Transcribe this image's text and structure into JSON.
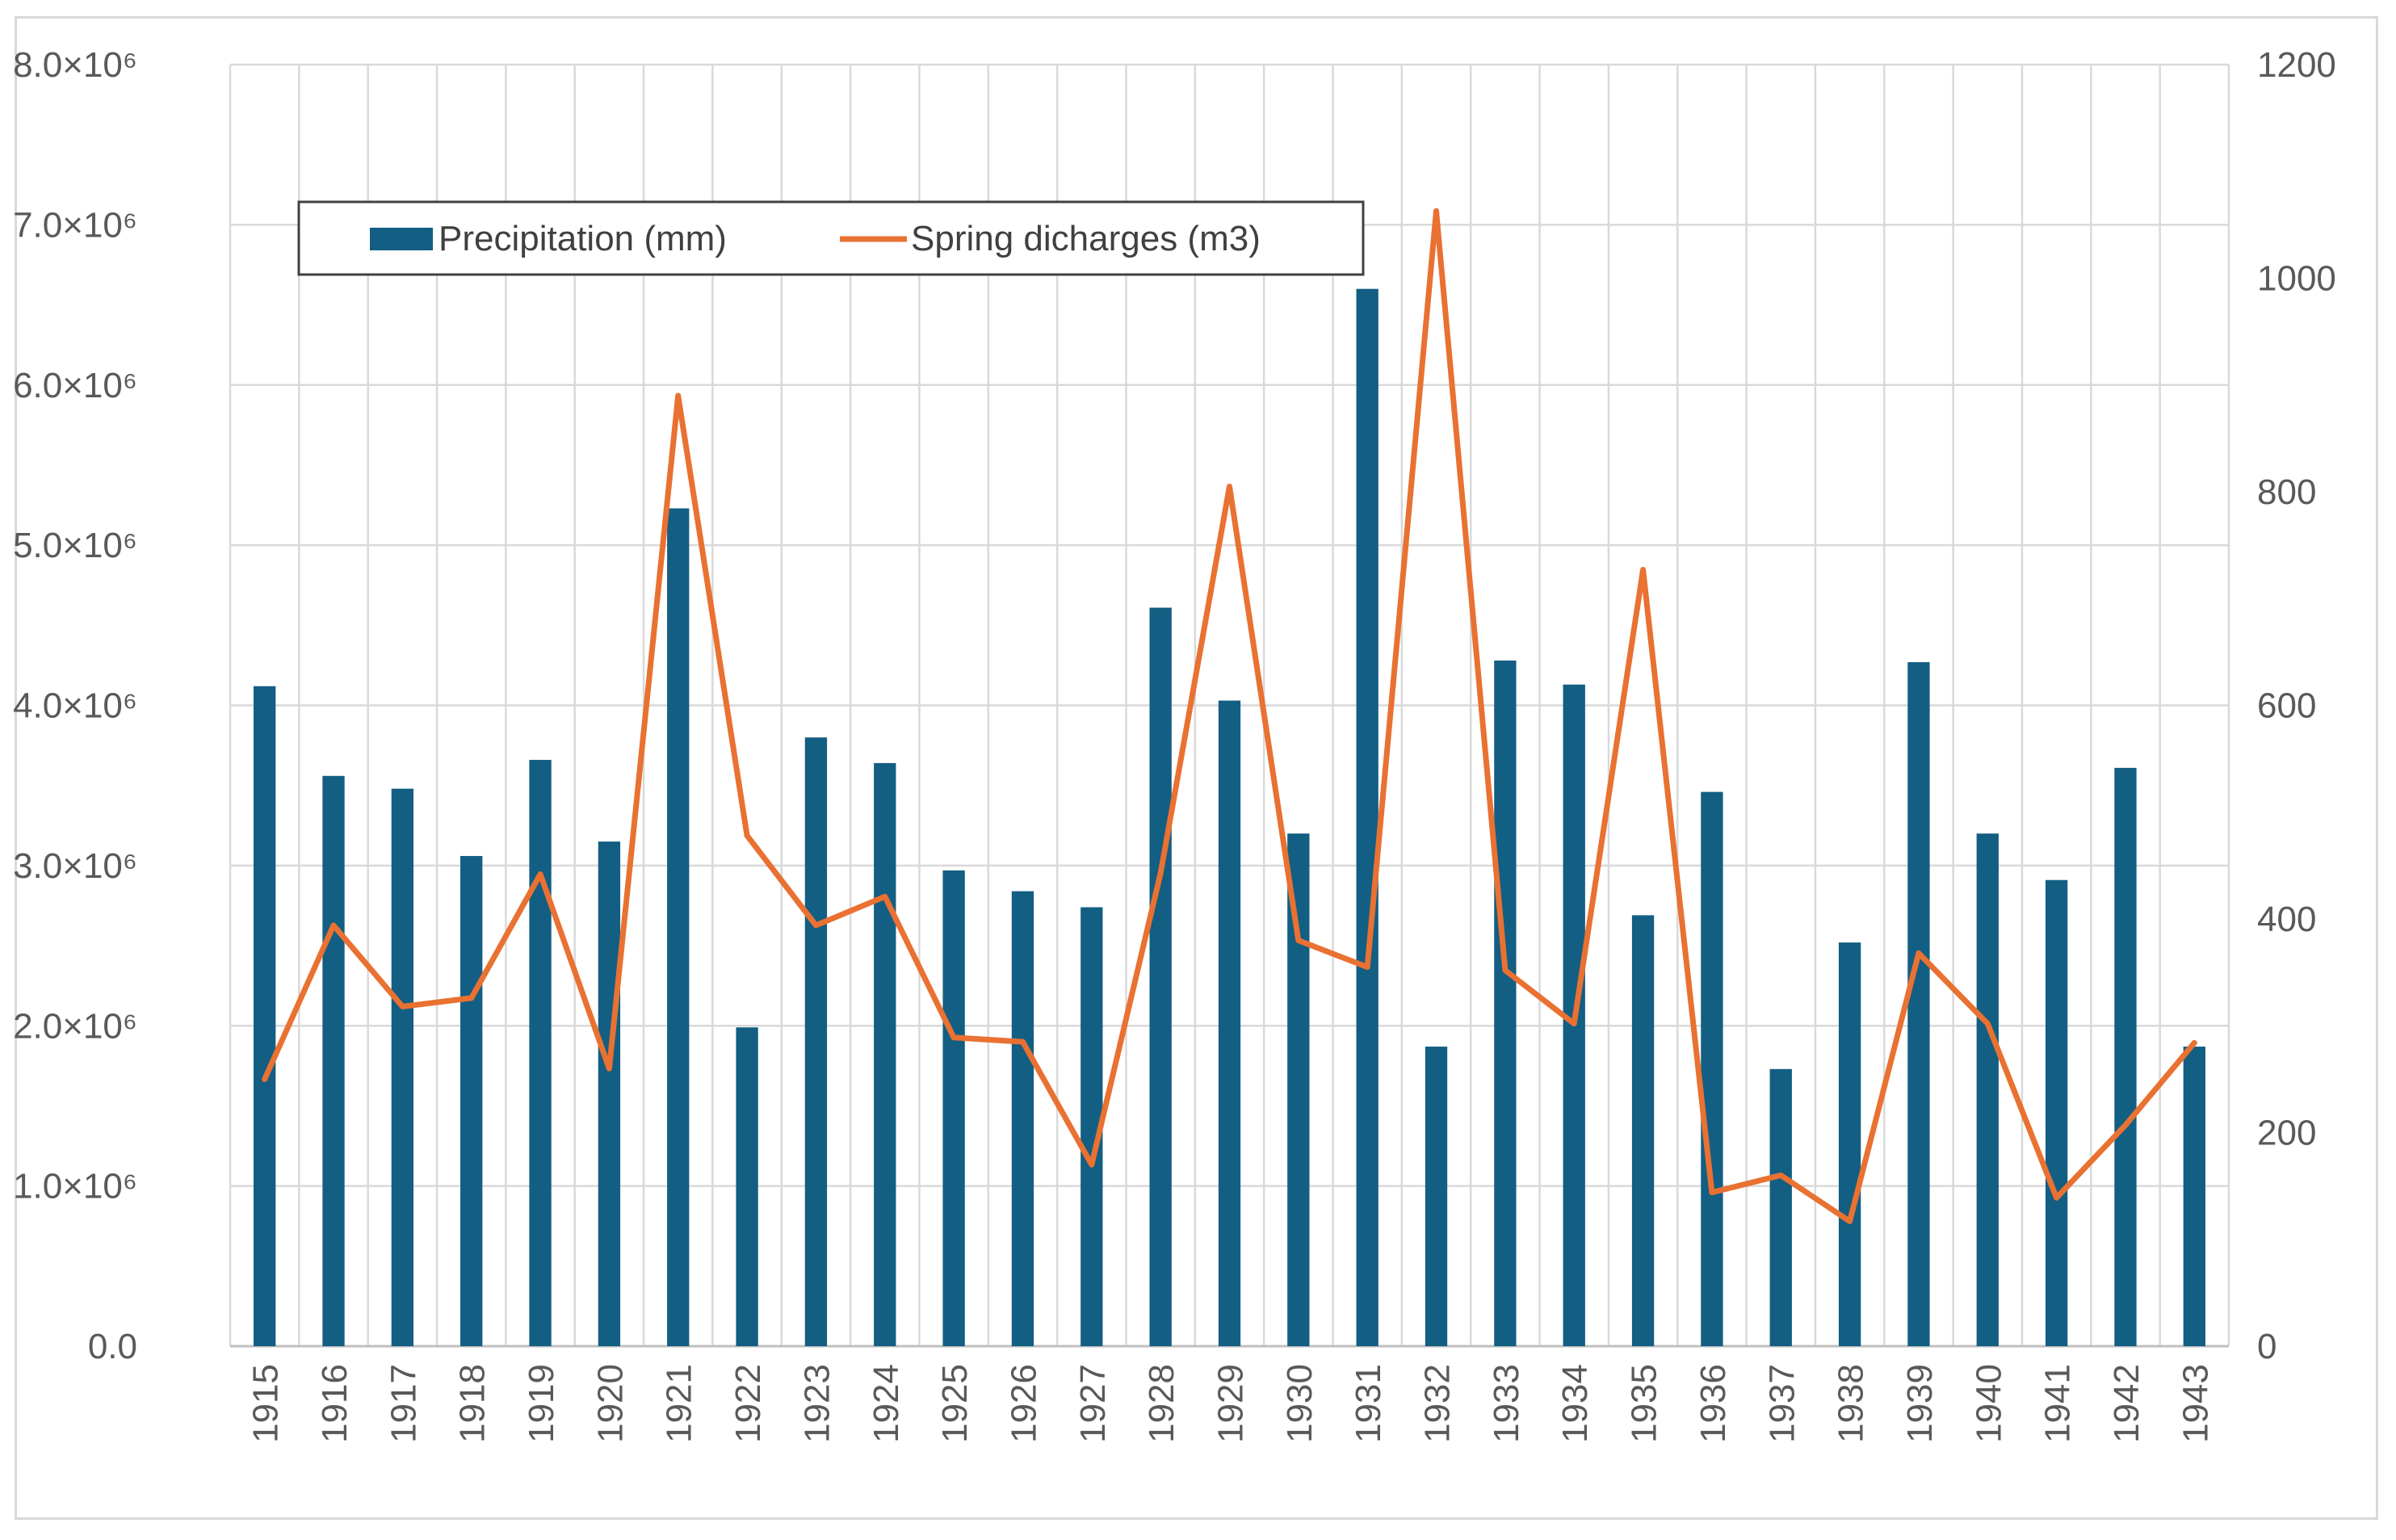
{
  "chart_data": {
    "type": "bar+line",
    "title": "",
    "categories": [
      "1915",
      "1916",
      "1917",
      "1918",
      "1919",
      "1920",
      "1921",
      "1922",
      "1923",
      "1924",
      "1925",
      "1926",
      "1927",
      "1928",
      "1929",
      "1930",
      "1931",
      "1932",
      "1933",
      "1934",
      "1935",
      "1936",
      "1937",
      "1938",
      "1939",
      "1940",
      "1941",
      "1942",
      "1943"
    ],
    "series": [
      {
        "name": "Precipitation (mm)",
        "kind": "bar",
        "axis": "left",
        "color": "#135E83",
        "values": [
          4120000,
          3560000,
          3480000,
          3060000,
          3660000,
          3150000,
          5230000,
          1990000,
          3800000,
          3640000,
          2970000,
          2840000,
          2740000,
          4610000,
          4030000,
          3200000,
          6600000,
          1870000,
          4280000,
          4130000,
          2690000,
          3460000,
          1730000,
          2520000,
          4270000,
          3200000,
          2910000,
          3610000,
          1870000
        ]
      },
      {
        "name": "Spring dicharges (m3)",
        "kind": "line",
        "axis": "right",
        "color": "#E97132",
        "values": [
          250,
          394,
          318,
          326,
          442,
          260,
          890,
          478,
          394,
          421,
          289,
          285,
          170,
          443,
          805,
          380,
          355,
          1063,
          352,
          302,
          727,
          144,
          160,
          117,
          368,
          302,
          139,
          207,
          284
        ]
      }
    ],
    "y_left": {
      "ylim": [
        0,
        8000000
      ],
      "tick_labels": [
        "0.0",
        "1.0×10⁶",
        "2.0×10⁶",
        "3.0×10⁶",
        "4.0×10⁶",
        "5.0×10⁶",
        "6.0×10⁶",
        "7.0×10⁶",
        "8.0×10⁶"
      ]
    },
    "y_right": {
      "ylim": [
        0,
        1200
      ],
      "tick_labels": [
        "0",
        "200",
        "400",
        "600",
        "800",
        "1000",
        "1200"
      ]
    },
    "grid": true,
    "legend": {
      "placement": "top-left",
      "entries": [
        "Precipitation (mm)",
        "Spring dicharges (m3)"
      ]
    },
    "xlabel": "",
    "ylabel": ""
  }
}
